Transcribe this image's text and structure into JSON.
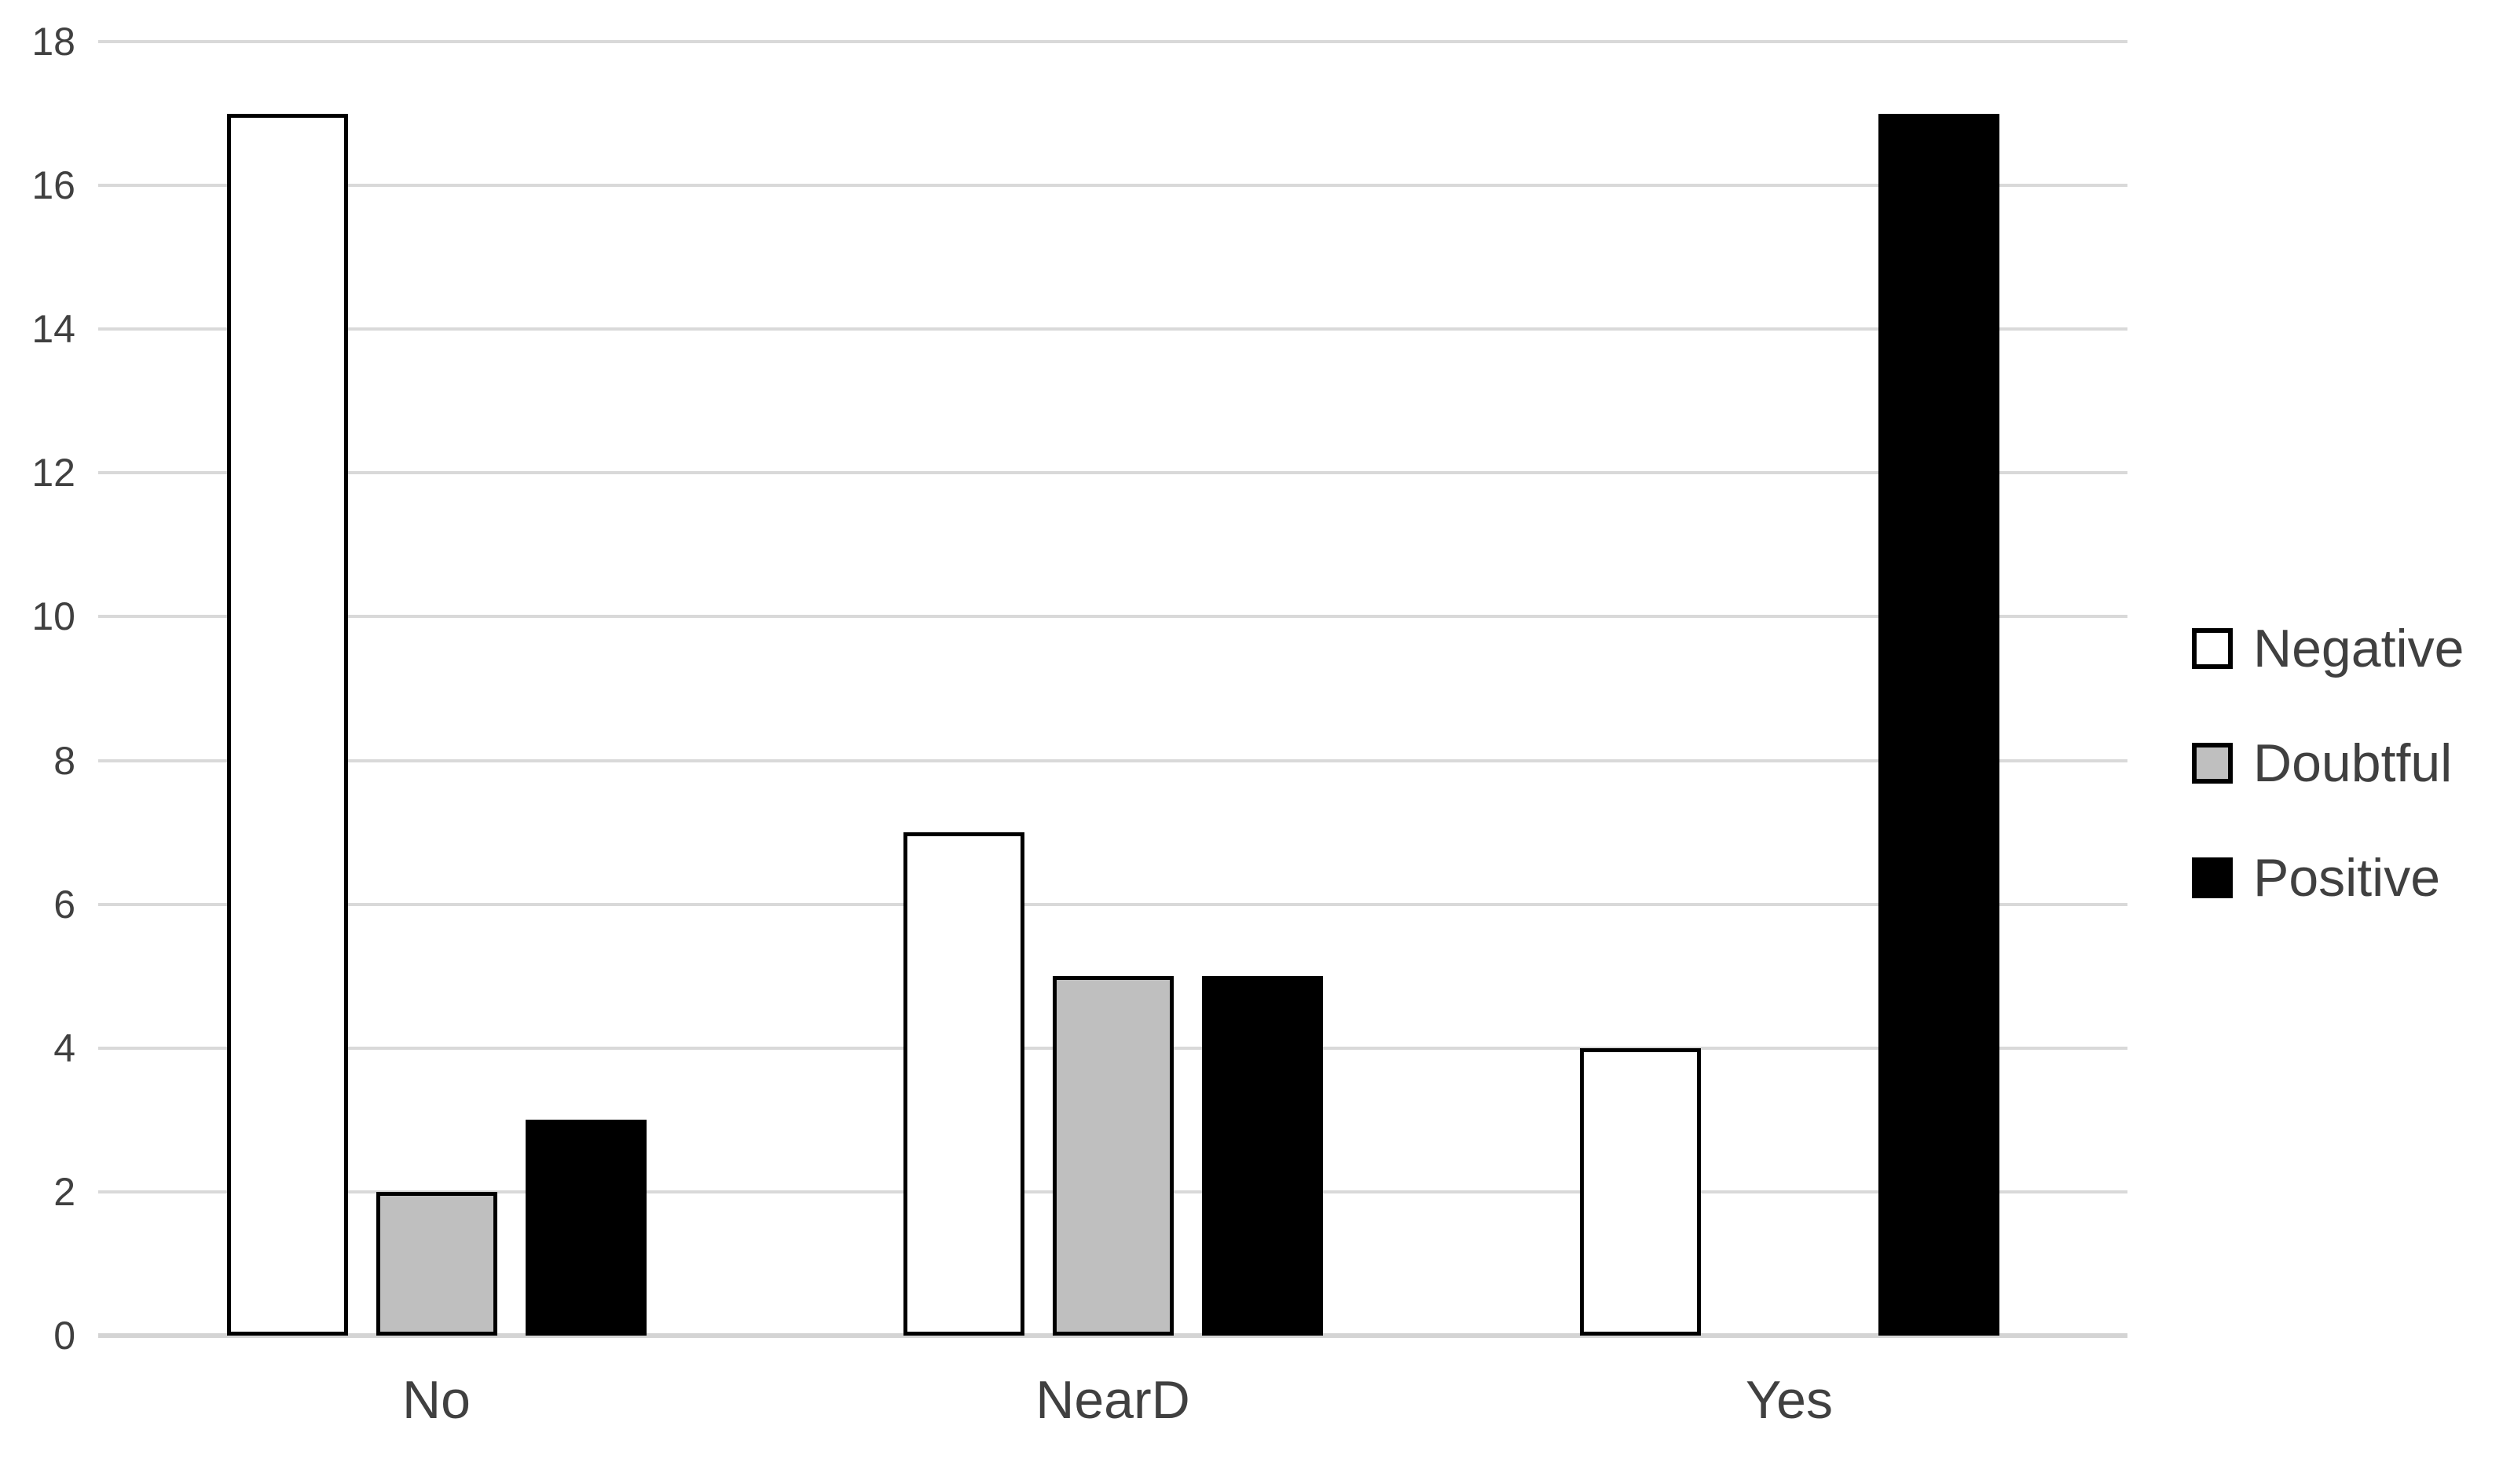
{
  "chart_data": {
    "type": "bar",
    "categories": [
      "No",
      "NearD",
      "Yes"
    ],
    "series": [
      {
        "name": "Negative",
        "values": [
          17,
          7,
          4
        ],
        "fill": "#FFFFFF",
        "border": "#000000"
      },
      {
        "name": "Doubtful",
        "values": [
          2,
          5,
          0
        ],
        "fill": "#BFBFBF",
        "border": "#000000"
      },
      {
        "name": "Positive",
        "values": [
          3,
          5,
          17
        ],
        "fill": "#000000",
        "border": "#000000"
      }
    ],
    "title": "",
    "xlabel": "",
    "ylabel": "",
    "ylim": [
      0,
      18
    ],
    "ytick_step": 2,
    "ytick_labels": [
      "0",
      "2",
      "4",
      "6",
      "8",
      "10",
      "12",
      "14",
      "16",
      "18"
    ],
    "grid": true,
    "legend_position": "right",
    "colors": {
      "gridline": "#D9D9D9",
      "tick_text": "#404040",
      "background": "#FFFFFF"
    }
  }
}
